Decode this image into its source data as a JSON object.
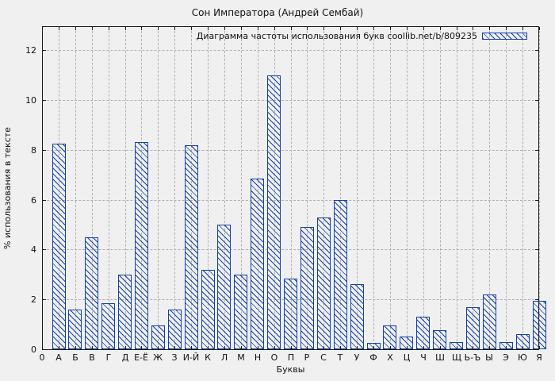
{
  "chart_data": {
    "type": "bar",
    "title": "Сон Императора (Андрей Сембай)",
    "legend_label": "Диаграмма частоты использования букв coollib.net/b/809235",
    "legend_position": "top-right-inside",
    "xlabel": "Буквы",
    "ylabel": "% использования в тексте",
    "origin_tick_label": "0",
    "categories": [
      "А",
      "Б",
      "В",
      "Г",
      "Д",
      "Е-Ё",
      "Ж",
      "З",
      "И-Й",
      "К",
      "Л",
      "М",
      "Н",
      "О",
      "П",
      "Р",
      "С",
      "Т",
      "У",
      "Ф",
      "Х",
      "Ц",
      "Ч",
      "Ш",
      "Щ",
      "Ь-Ъ",
      "Ы",
      "Э",
      "Ю",
      "Я"
    ],
    "values": [
      8.25,
      1.6,
      4.5,
      1.85,
      3.0,
      8.3,
      0.95,
      1.6,
      8.2,
      3.2,
      5.0,
      3.0,
      6.85,
      11.0,
      2.85,
      4.9,
      5.3,
      6.0,
      2.6,
      0.25,
      0.95,
      0.5,
      1.3,
      0.75,
      0.3,
      1.7,
      2.2,
      0.3,
      0.6,
      1.95
    ],
    "yticks": [
      0,
      2,
      4,
      6,
      8,
      10,
      12
    ],
    "ylim": [
      0,
      12.93
    ],
    "grid": true,
    "colors": {
      "bar": "#1240a4",
      "grid": "#b0b0b0",
      "background": "#f0f0f0",
      "border": "#1a1a1a",
      "text": "#000000"
    }
  }
}
